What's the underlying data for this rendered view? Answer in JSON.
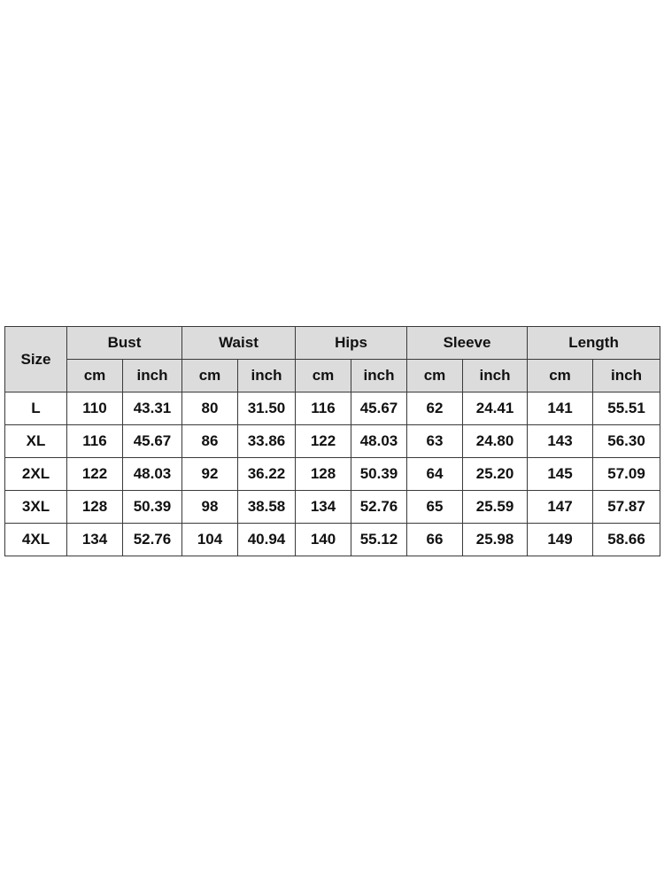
{
  "table": {
    "size_header": "Size",
    "groups": [
      "Bust",
      "Waist",
      "Hips",
      "Sleeve",
      "Length"
    ],
    "units": [
      "cm",
      "inch"
    ],
    "rows": [
      [
        "L",
        "110",
        "43.31",
        "80",
        "31.50",
        "116",
        "45.67",
        "62",
        "24.41",
        "141",
        "55.51"
      ],
      [
        "XL",
        "116",
        "45.67",
        "86",
        "33.86",
        "122",
        "48.03",
        "63",
        "24.80",
        "143",
        "56.30"
      ],
      [
        "2XL",
        "122",
        "48.03",
        "92",
        "36.22",
        "128",
        "50.39",
        "64",
        "25.20",
        "145",
        "57.09"
      ],
      [
        "3XL",
        "128",
        "50.39",
        "98",
        "38.58",
        "134",
        "52.76",
        "65",
        "25.59",
        "147",
        "57.87"
      ],
      [
        "4XL",
        "134",
        "52.76",
        "104",
        "40.94",
        "140",
        "55.12",
        "66",
        "25.98",
        "149",
        "58.66"
      ]
    ]
  },
  "colors": {
    "header_bg": "#dcdcdc",
    "border": "#3a3a3a",
    "text": "#111111"
  }
}
